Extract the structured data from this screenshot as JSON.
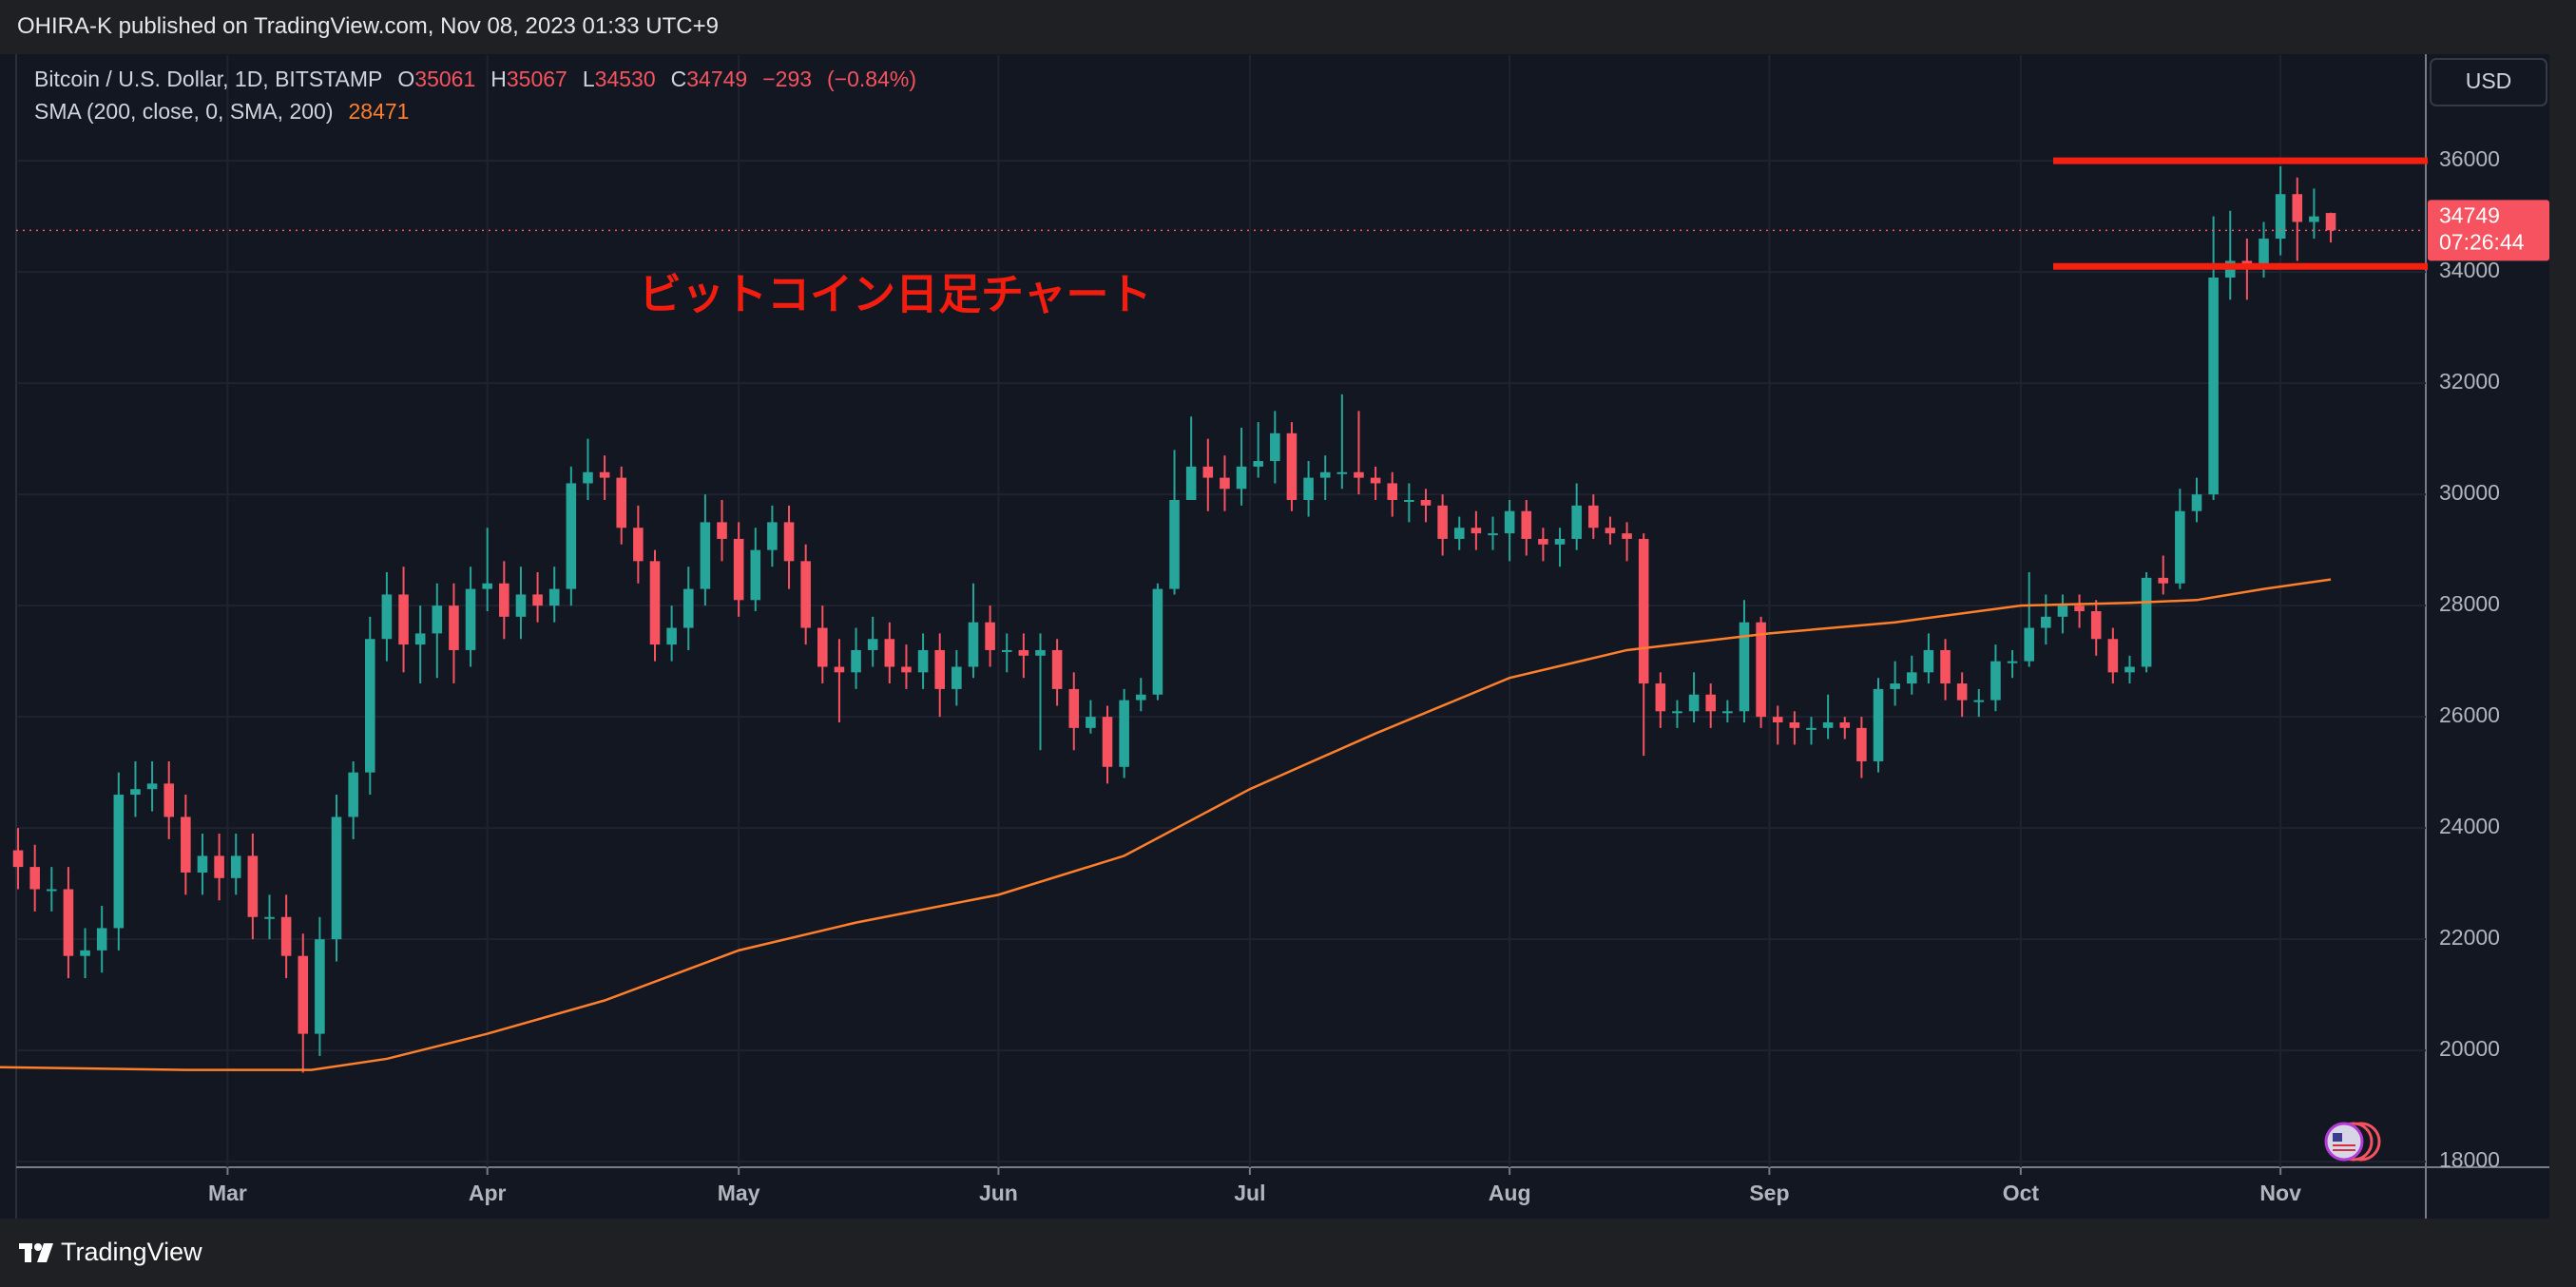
{
  "header": {
    "publisher": "OHIRA-K published on TradingView.com, Nov 08, 2023 01:33 UTC+9"
  },
  "chart_data": {
    "type": "candlestick",
    "symbol": "Bitcoin / U.S. Dollar, 1D, BITSTAMP",
    "ohlc_labels": [
      "O",
      "H",
      "L",
      "C"
    ],
    "change": {
      "value": -293,
      "label": "−293"
    },
    "change_pct": {
      "value": -0.84,
      "label": "(−0.84%)"
    },
    "up_color": "#26a69a",
    "down_color": "#f7525f",
    "open": [
      23600,
      23300,
      22900,
      22900,
      21700,
      21800,
      22200,
      24600,
      24700,
      24800,
      24200,
      23200,
      23500,
      23100,
      23500,
      22400,
      22400,
      21700,
      20300,
      22000,
      24200,
      25000,
      27400,
      28200,
      27300,
      27500,
      28000,
      27200,
      28300,
      28400,
      27800,
      28200,
      28000,
      28300,
      30200,
      30400,
      30300,
      29400,
      28800,
      27300,
      27600,
      28300,
      29500,
      29200,
      28100,
      29000,
      29500,
      28800,
      27600,
      26900,
      26800,
      27200,
      27400,
      26900,
      26800,
      27200,
      26500,
      26900,
      27700,
      27200,
      27200,
      27100,
      27200,
      26500,
      25800,
      26000,
      25100,
      26300,
      26400,
      28300,
      29900,
      30500,
      30300,
      30100,
      30500,
      30600,
      31100,
      29900,
      30300,
      30400,
      30400,
      30300,
      30200,
      29900,
      29900,
      29800,
      29200,
      29400,
      29300,
      29300,
      29700,
      29200,
      29100,
      29200,
      29800,
      29400,
      29300,
      29200,
      26600,
      26100,
      26100,
      26400,
      26100,
      26100,
      27700,
      26000,
      25900,
      25800,
      25800,
      25900,
      25800,
      25200,
      26500,
      26600,
      26800,
      27200,
      26600,
      26300,
      26300,
      27000,
      27000,
      27600,
      27800,
      28000,
      27900,
      27400,
      26800,
      26900,
      28500,
      28400,
      29700,
      30000,
      33900,
      34200,
      34100,
      34600,
      35400,
      34900,
      35061
    ],
    "high": [
      24000,
      23700,
      23300,
      23300,
      22200,
      22600,
      25000,
      25200,
      25200,
      25200,
      24600,
      23900,
      23900,
      23900,
      23900,
      22800,
      22800,
      22100,
      22400,
      24600,
      25200,
      27800,
      28600,
      28700,
      28000,
      28400,
      28400,
      28700,
      29400,
      28800,
      28700,
      28600,
      28700,
      30500,
      31000,
      30700,
      30500,
      29800,
      29000,
      28000,
      28700,
      30000,
      29900,
      29500,
      29400,
      29800,
      29800,
      29100,
      28000,
      27400,
      27600,
      27800,
      27700,
      27300,
      27500,
      27500,
      27200,
      28400,
      28000,
      27500,
      27500,
      27500,
      27400,
      26800,
      26300,
      26200,
      26500,
      26700,
      28400,
      30800,
      31400,
      31000,
      30700,
      31200,
      31300,
      31500,
      31300,
      30600,
      30700,
      31800,
      31500,
      30500,
      30400,
      30200,
      30100,
      30000,
      29600,
      29700,
      29600,
      29900,
      29900,
      29400,
      29400,
      30200,
      30000,
      29600,
      29500,
      29300,
      26800,
      26300,
      26800,
      26600,
      26300,
      28100,
      27800,
      26200,
      26100,
      26000,
      26400,
      26000,
      26000,
      26700,
      27000,
      27100,
      27500,
      27400,
      26800,
      26500,
      27300,
      27200,
      28600,
      28200,
      28200,
      28200,
      28100,
      27600,
      27100,
      28600,
      28900,
      30100,
      30300,
      35000,
      35100,
      34600,
      34900,
      35900,
      35700,
      35500,
      35067
    ],
    "low": [
      22900,
      22500,
      22500,
      21300,
      21300,
      21400,
      21800,
      24200,
      24300,
      23800,
      22800,
      22800,
      22700,
      22800,
      22000,
      22000,
      21300,
      19600,
      19900,
      21600,
      23800,
      24600,
      27000,
      26800,
      26600,
      26700,
      26600,
      26900,
      27900,
      27400,
      27400,
      27700,
      27700,
      28000,
      29900,
      29900,
      29100,
      28400,
      27000,
      27000,
      27200,
      28000,
      28800,
      27800,
      27900,
      28700,
      28300,
      27300,
      26600,
      25900,
      26500,
      26900,
      26600,
      26500,
      26500,
      26000,
      26200,
      26700,
      26900,
      26800,
      26700,
      25400,
      26200,
      25400,
      25700,
      24800,
      24900,
      26100,
      26300,
      28200,
      29900,
      29700,
      29700,
      29800,
      30300,
      30200,
      29700,
      29600,
      29900,
      30100,
      30000,
      29900,
      29600,
      29500,
      29500,
      28900,
      29000,
      29000,
      29000,
      28800,
      28900,
      28800,
      28700,
      29000,
      29200,
      29100,
      28800,
      25300,
      25800,
      25800,
      25900,
      25800,
      25900,
      25900,
      25800,
      25500,
      25500,
      25500,
      25600,
      25600,
      24900,
      25000,
      26200,
      26400,
      26600,
      26300,
      26000,
      26000,
      26100,
      26700,
      26900,
      27300,
      27500,
      27600,
      27100,
      26600,
      26600,
      26800,
      28200,
      28300,
      29500,
      29900,
      33500,
      33500,
      33900,
      34300,
      34200,
      34600,
      34530
    ],
    "close": [
      23300,
      22900,
      22900,
      21700,
      21800,
      22200,
      24600,
      24700,
      24800,
      24200,
      23200,
      23500,
      23100,
      23500,
      22400,
      22400,
      21700,
      20300,
      22000,
      24200,
      25000,
      27400,
      28200,
      27300,
      27500,
      28000,
      27200,
      28300,
      28400,
      27800,
      28200,
      28000,
      28300,
      30200,
      30400,
      30300,
      29400,
      28800,
      27300,
      27600,
      28300,
      29500,
      29200,
      28100,
      29000,
      29500,
      28800,
      27600,
      26900,
      26800,
      27200,
      27400,
      26900,
      26800,
      27200,
      26500,
      26900,
      27700,
      27200,
      27200,
      27100,
      27200,
      26500,
      25800,
      26000,
      25100,
      26300,
      26400,
      28300,
      29900,
      30500,
      30300,
      30100,
      30500,
      30600,
      31100,
      29900,
      30300,
      30400,
      30400,
      30300,
      30200,
      29900,
      29900,
      29800,
      29200,
      29400,
      29300,
      29300,
      29700,
      29200,
      29100,
      29200,
      29800,
      29400,
      29300,
      29200,
      26600,
      26100,
      26100,
      26400,
      26100,
      26100,
      27700,
      26000,
      25900,
      25800,
      25800,
      25900,
      25800,
      25200,
      26500,
      26600,
      26800,
      27200,
      26600,
      26300,
      26300,
      27000,
      27000,
      27600,
      27800,
      28000,
      27900,
      27400,
      26800,
      26900,
      28500,
      28400,
      29700,
      30000,
      33900,
      34200,
      34100,
      34600,
      35400,
      34900,
      35000,
      34749
    ],
    "indicator": {
      "name": "SMA (200, close, 0, SMA, 200)",
      "color": "#ff7f2a",
      "x": [
        -1.08,
        10,
        17.5,
        22,
        28,
        35,
        43,
        50,
        58.5,
        66,
        73.5,
        81,
        89,
        96,
        104.5,
        112,
        119.5,
        126,
        130,
        134,
        138
      ],
      "values": [
        19700,
        19650,
        19650,
        19850,
        20300,
        20900,
        21800,
        22300,
        22800,
        23500,
        24700,
        25700,
        26700,
        27200,
        27500,
        27700,
        28000,
        28050,
        28100,
        28300,
        28471
      ]
    },
    "annotation": "ビットコイン日足チャート",
    "hlines": {
      "values": [
        36000,
        34100
      ],
      "color": "#f5200f"
    },
    "countdown": "07:26:44",
    "currency": "USD",
    "xlim": [
      -1.08,
      143.5
    ],
    "xticks": [
      {
        "value": 12.5,
        "label": "Mar"
      },
      {
        "value": 28,
        "label": "Apr"
      },
      {
        "value": 43,
        "label": "May"
      },
      {
        "value": 58.5,
        "label": "Jun"
      },
      {
        "value": 73.5,
        "label": "Jul"
      },
      {
        "value": 89,
        "label": "Aug"
      },
      {
        "value": 104.5,
        "label": "Sep"
      },
      {
        "value": 119.5,
        "label": "Oct"
      },
      {
        "value": 135,
        "label": "Nov"
      }
    ],
    "ylim": [
      17900,
      37900
    ],
    "yticks": [
      18000,
      20000,
      22000,
      24000,
      26000,
      28000,
      30000,
      32000,
      34000,
      36000
    ],
    "grid": true
  },
  "footer": {
    "brand": "TradingView"
  }
}
